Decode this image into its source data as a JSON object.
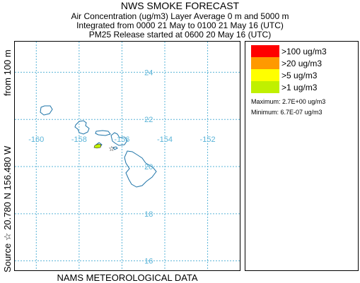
{
  "title": "NWS SMOKE FORECAST",
  "subtitle_lines": [
    "Air Concentration (ug/m3) Layer Average    0 m and  5000 m",
    "Integrated from 0000 21 May to 0100 21 May 16 (UTC)",
    "PM25 Release started at 0600 20 May 16 (UTC)"
  ],
  "side_label_lower": "Source ☆  20.780  N 156.480  W",
  "side_label_upper": "from  100 m",
  "footer": "NAMS METEOROLOGICAL DATA",
  "map": {
    "lon_range": [
      -161.0,
      -150.5
    ],
    "lat_range": [
      15.6,
      25.3
    ],
    "lon_ticks": [
      -160,
      -158,
      -156,
      -154,
      -152
    ],
    "lon_tick_labels": [
      "-160",
      "-158",
      "-156",
      "-154",
      "-152"
    ],
    "lat_ticks": [
      16,
      18,
      20,
      22,
      24
    ],
    "lat_tick_labels": [
      "16",
      "18",
      "20",
      "22",
      "24"
    ],
    "graticule_color": "#5ab4d8",
    "coast_color": "#1e74a8",
    "source": {
      "lon": -156.48,
      "lat": 20.78
    },
    "plume_color": "#c0f000"
  },
  "legend": {
    "items": [
      {
        "color": "#ff0000",
        "label": ">100 ug/m3"
      },
      {
        "color": "#ff9900",
        "label": ">20 ug/m3"
      },
      {
        "color": "#ffff00",
        "label": ">5 ug/m3"
      },
      {
        "color": "#c0f000",
        "label": ">1 ug/m3"
      }
    ],
    "maximum": "Maximum: 2.7E+00 ug/m3",
    "minimum": "Minimum: 6.7E-07 ug/m3"
  }
}
